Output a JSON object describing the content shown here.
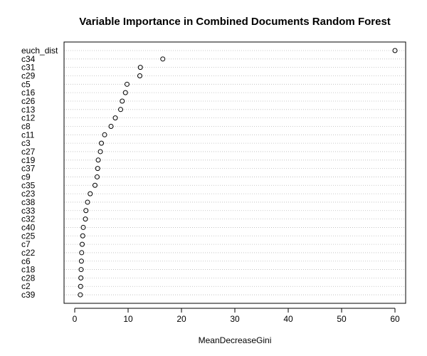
{
  "chart_data": {
    "type": "scatter",
    "title": "Variable Importance in Combined Documents Random Forest",
    "xlabel": "MeanDecreaseGini",
    "ylabel": "",
    "xlim": [
      -2,
      62
    ],
    "xticks": [
      0,
      10,
      20,
      30,
      40,
      50,
      60
    ],
    "grid": "horizontal dotted lines per variable",
    "marker": "open circle",
    "categories": [
      "euch_dist",
      "c34",
      "c31",
      "c29",
      "c5",
      "c16",
      "c26",
      "c13",
      "c12",
      "c8",
      "c11",
      "c3",
      "c27",
      "c19",
      "c37",
      "c9",
      "c35",
      "c23",
      "c38",
      "c33",
      "c32",
      "c40",
      "c25",
      "c7",
      "c22",
      "c6",
      "c18",
      "c28",
      "c2",
      "c39"
    ],
    "values": [
      60.0,
      16.5,
      12.3,
      12.2,
      9.8,
      9.5,
      8.9,
      8.6,
      7.6,
      6.8,
      5.6,
      5.0,
      4.8,
      4.4,
      4.3,
      4.2,
      3.8,
      2.9,
      2.4,
      2.1,
      2.0,
      1.6,
      1.5,
      1.4,
      1.3,
      1.25,
      1.2,
      1.15,
      1.1,
      1.05
    ]
  }
}
